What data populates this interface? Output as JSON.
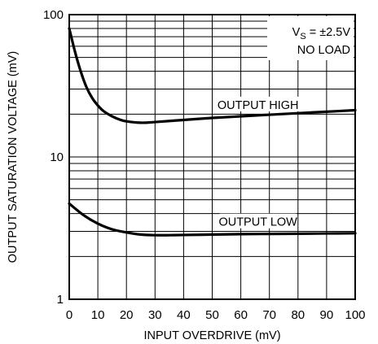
{
  "chart_data": {
    "type": "line",
    "xlabel": "INPUT OVERDRIVE (mV)",
    "ylabel": "OUTPUT SATURATION VOLTAGE (mV)",
    "xlim": [
      0,
      100
    ],
    "ylim": [
      1,
      100
    ],
    "y_scale": "log",
    "grid": true,
    "x_ticks": [
      0,
      10,
      20,
      30,
      40,
      50,
      60,
      70,
      80,
      90,
      100
    ],
    "x_tick_labels": [
      "0",
      "10",
      "20",
      "30",
      "40",
      "50",
      "60",
      "70",
      "80",
      "90",
      "100"
    ],
    "y_tick_labels": [
      {
        "value": 1,
        "label": "1"
      },
      {
        "value": 10,
        "label": "10"
      },
      {
        "value": 100,
        "label": "100"
      }
    ],
    "annotations": [
      {
        "main": "V",
        "sub": "S",
        "rest": " = ±2.5V",
        "placement": "top-right"
      },
      {
        "text": "NO LOAD",
        "placement": "top-right"
      }
    ],
    "series": [
      {
        "name": "OUTPUT HIGH",
        "x": [
          0,
          2,
          4,
          6,
          8,
          10,
          12,
          15,
          18,
          20,
          25,
          30,
          40,
          50,
          60,
          70,
          80,
          90,
          100
        ],
        "y": [
          80,
          55,
          40,
          31,
          26,
          23,
          21,
          19.3,
          18.2,
          17.8,
          17.4,
          17.6,
          18.2,
          18.8,
          19.3,
          19.8,
          20.3,
          20.8,
          21.3
        ]
      },
      {
        "name": "OUTPUT LOW",
        "x": [
          0,
          5,
          10,
          15,
          20,
          25,
          30,
          35,
          40,
          50,
          60,
          70,
          80,
          90,
          100
        ],
        "y": [
          4.7,
          3.9,
          3.4,
          3.1,
          2.95,
          2.85,
          2.82,
          2.82,
          2.83,
          2.85,
          2.87,
          2.88,
          2.89,
          2.9,
          2.91
        ]
      }
    ]
  }
}
